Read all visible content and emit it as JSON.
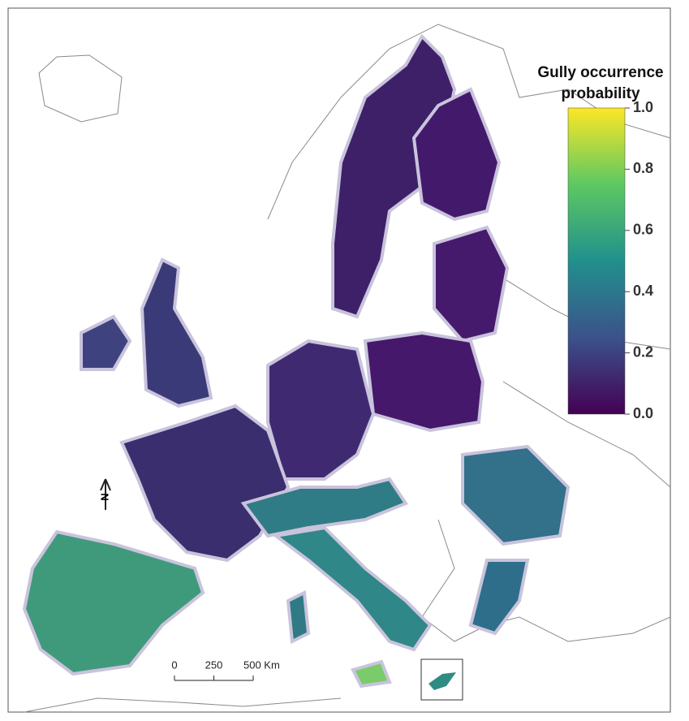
{
  "legend": {
    "title_lines": [
      "Gully occurrence",
      "probability"
    ],
    "range": [
      0,
      1
    ],
    "ticks": [
      {
        "value": 0,
        "label": "0.0"
      },
      {
        "value": 0.2,
        "label": "0.2"
      },
      {
        "value": 0.4,
        "label": "0.4"
      },
      {
        "value": 0.6,
        "label": "0.6"
      },
      {
        "value": 0.8,
        "label": "0.8"
      },
      {
        "value": 1,
        "label": "1.0"
      }
    ],
    "colors": [
      "#440154",
      "#3b528b",
      "#21908c",
      "#5dc863",
      "#fde725"
    ]
  },
  "scale_bar": {
    "ticks": [
      0,
      250,
      {
        "value": 500,
        "label": "500 Km"
      }
    ]
  },
  "north_arrow": {
    "label": "N"
  }
}
